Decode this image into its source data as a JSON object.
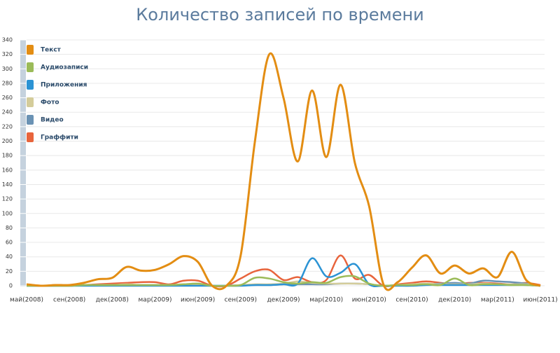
{
  "chart_data": {
    "type": "line",
    "title": "Количество записей по времени",
    "categories": [
      "май(2008)",
      null,
      null,
      "сен(2008)",
      null,
      null,
      "дек(2008)",
      null,
      null,
      "мар(2009)",
      null,
      null,
      "июн(2009)",
      null,
      null,
      "сен(2009)",
      null,
      null,
      "дек(2009)",
      null,
      null,
      "мар(2010)",
      null,
      null,
      "июн(2010)",
      null,
      null,
      "сен(2010)",
      null,
      null,
      "дек(2010)",
      null,
      null,
      "мар(2011)",
      null,
      null,
      "июн(2011)"
    ],
    "ylim": [
      0,
      340
    ],
    "yticks": [
      0,
      20,
      40,
      60,
      80,
      100,
      120,
      140,
      160,
      180,
      200,
      220,
      240,
      260,
      280,
      300,
      320,
      340
    ],
    "grid": true,
    "legend": "upper left",
    "series": [
      {
        "name": "Текст",
        "color": "#e38d13",
        "values": [
          2,
          0,
          1,
          1,
          4,
          9,
          11,
          26,
          21,
          22,
          30,
          41,
          33,
          0,
          0,
          42,
          200,
          320,
          260,
          172,
          270,
          178,
          278,
          170,
          110,
          2,
          5,
          25,
          42,
          17,
          28,
          17,
          24,
          12,
          47,
          8,
          0
        ]
      },
      {
        "name": "Аудиозаписи",
        "color": "#9bbb59",
        "values": [
          0,
          0,
          0,
          0,
          1,
          1,
          1,
          1,
          1,
          1,
          1,
          2,
          3,
          0,
          0,
          1,
          11,
          10,
          5,
          3,
          5,
          4,
          12,
          13,
          3,
          0,
          1,
          1,
          2,
          1,
          10,
          1,
          2,
          2,
          1,
          1,
          0
        ]
      },
      {
        "name": "Приложения",
        "color": "#2b93d4",
        "values": [
          0,
          0,
          0,
          0,
          0,
          0,
          0,
          0,
          0,
          0,
          0,
          0,
          0,
          0,
          0,
          0,
          1,
          1,
          2,
          3,
          38,
          13,
          18,
          30,
          2,
          0,
          0,
          0,
          1,
          1,
          1,
          1,
          1,
          1,
          1,
          1,
          0
        ]
      },
      {
        "name": "Фото",
        "color": "#d4cc9a",
        "values": [
          0,
          0,
          0,
          0,
          1,
          1,
          1,
          2,
          1,
          1,
          1,
          2,
          2,
          0,
          0,
          1,
          2,
          2,
          3,
          6,
          4,
          3,
          3,
          3,
          2,
          0,
          1,
          2,
          3,
          2,
          2,
          2,
          3,
          2,
          2,
          2,
          0
        ]
      },
      {
        "name": "Видео",
        "color": "#6a92b4",
        "values": [
          0,
          0,
          0,
          0,
          1,
          1,
          1,
          1,
          1,
          1,
          1,
          1,
          1,
          0,
          0,
          1,
          1,
          1,
          2,
          2,
          2,
          2,
          3,
          3,
          2,
          0,
          1,
          1,
          2,
          3,
          4,
          3,
          7,
          6,
          5,
          3,
          0
        ]
      },
      {
        "name": "Граффити",
        "color": "#e8643c",
        "values": [
          2,
          0,
          0,
          0,
          1,
          2,
          3,
          4,
          5,
          5,
          2,
          7,
          7,
          0,
          0,
          10,
          20,
          22,
          8,
          12,
          5,
          8,
          42,
          10,
          15,
          0,
          2,
          4,
          6,
          4,
          2,
          4,
          4,
          3,
          2,
          4,
          1
        ]
      }
    ]
  }
}
